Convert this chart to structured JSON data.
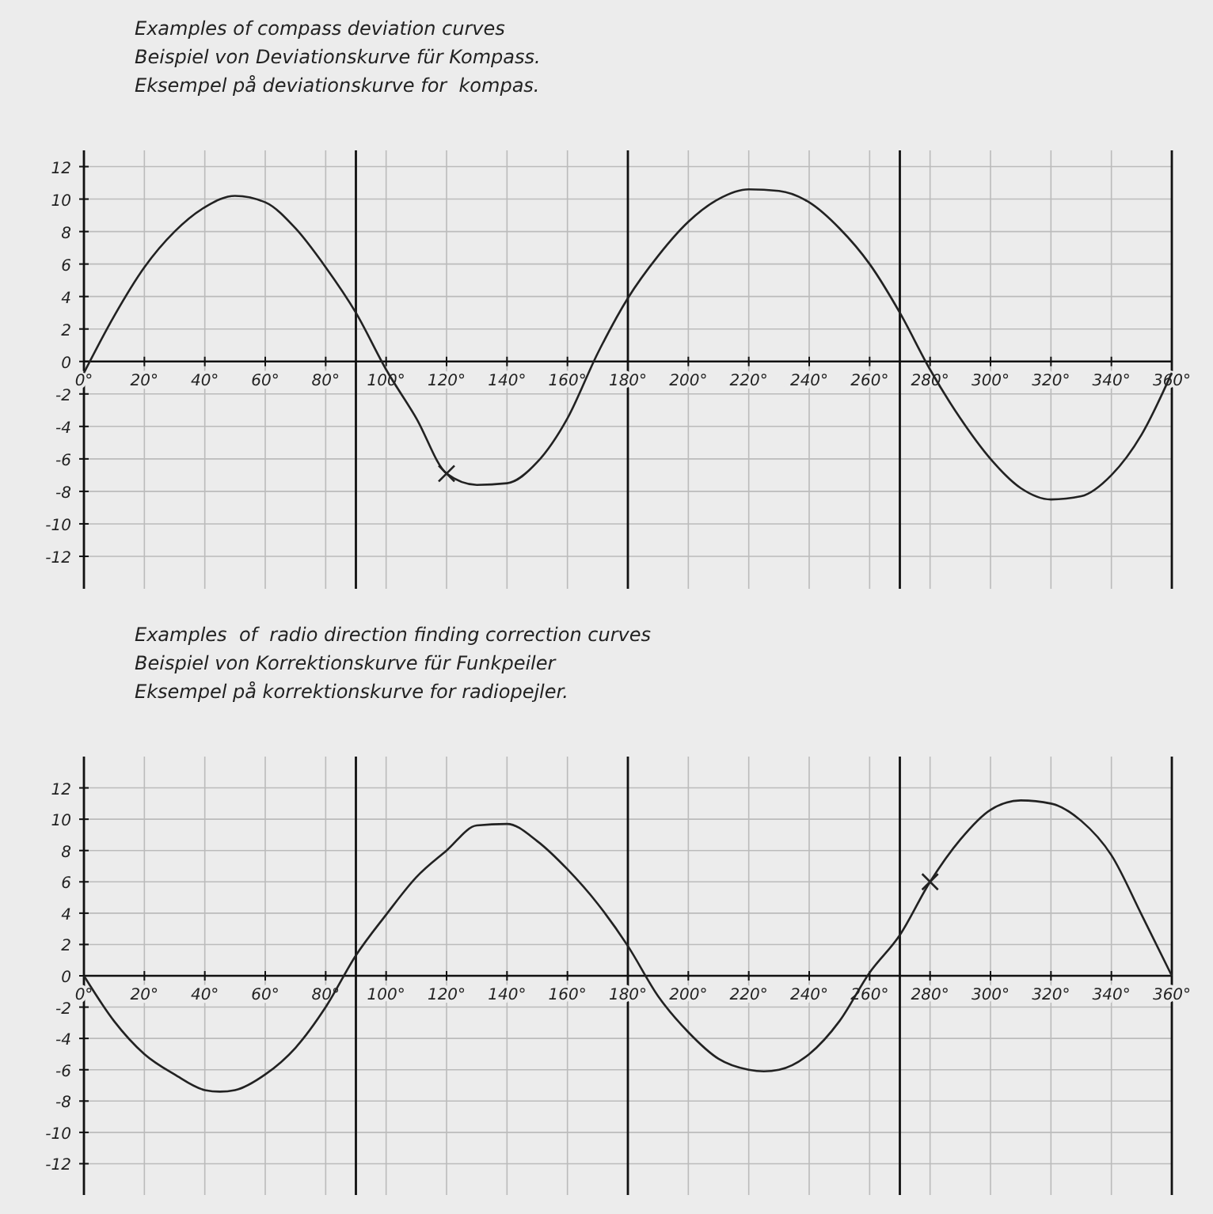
{
  "chart_data": [
    {
      "type": "line",
      "title": "Examples of compass deviation curves\nBeispiel von Deviationskurve für Kompass.\nEksempel på deviationskurve for  kompas.",
      "xlim": [
        0,
        360
      ],
      "ylim": [
        -14,
        13
      ],
      "xticks": [
        {
          "value": 0,
          "label": "0°"
        },
        {
          "value": 20,
          "label": "20°"
        },
        {
          "value": 40,
          "label": "40°"
        },
        {
          "value": 60,
          "label": "60°"
        },
        {
          "value": 80,
          "label": "80°"
        },
        {
          "value": 100,
          "label": "100°"
        },
        {
          "value": 120,
          "label": "120°"
        },
        {
          "value": 140,
          "label": "140°"
        },
        {
          "value": 160,
          "label": "160°"
        },
        {
          "value": 180,
          "label": "180°"
        },
        {
          "value": 200,
          "label": "200°"
        },
        {
          "value": 220,
          "label": "220°"
        },
        {
          "value": 240,
          "label": "240°"
        },
        {
          "value": 260,
          "label": "260°"
        },
        {
          "value": 280,
          "label": "280°"
        },
        {
          "value": 300,
          "label": "300°"
        },
        {
          "value": 320,
          "label": "320°"
        },
        {
          "value": 340,
          "label": "340°"
        },
        {
          "value": 360,
          "label": "360°"
        }
      ],
      "yticks": [
        -12,
        -10,
        -8,
        -6,
        -4,
        -2,
        0,
        2,
        4,
        6,
        8,
        10,
        12
      ],
      "grid": true,
      "ref_lines": [
        {
          "axis": "x",
          "value": 90,
          "color": "#111111"
        },
        {
          "axis": "x",
          "value": 180,
          "color": "#111111"
        },
        {
          "axis": "x",
          "value": 270,
          "color": "#111111"
        },
        {
          "axis": "x",
          "value": 360,
          "color": "#111111"
        }
      ],
      "series": [
        {
          "color": "#222222",
          "x": [
            0,
            10,
            20,
            30,
            40,
            50,
            60,
            70,
            80,
            90,
            100,
            110,
            120,
            130,
            140,
            150,
            160,
            170,
            180,
            190,
            200,
            210,
            220,
            230,
            240,
            250,
            260,
            270,
            280,
            290,
            300,
            310,
            320,
            330,
            340,
            350,
            360
          ],
          "values": [
            -0.7,
            2.8,
            5.8,
            8.0,
            9.5,
            10.2,
            9.8,
            8.2,
            5.8,
            3.0,
            -0.5,
            -3.5,
            -6.9,
            -7.6,
            -7.5,
            -6.2,
            -3.5,
            0.5,
            3.9,
            6.5,
            8.6,
            10.0,
            10.6,
            10.5,
            9.8,
            8.2,
            6.0,
            3.0,
            -0.5,
            -3.5,
            -6.0,
            -7.8,
            -8.5,
            -8.3,
            -7.0,
            -4.5,
            -0.7
          ]
        },
        {
          "type": "scatter",
          "marker": "cross",
          "color": "#222222",
          "x": [
            120
          ],
          "values": [
            -6.9
          ]
        }
      ]
    },
    {
      "type": "line",
      "title": "Examples  of  radio direction finding correction curves\nBeispiel von Korrektionskurve für Funkpeiler\nEksempel på korrektionskurve for radiopejler.",
      "xlim": [
        0,
        360
      ],
      "ylim": [
        -14,
        14
      ],
      "xticks": [
        {
          "value": 0,
          "label": "0°"
        },
        {
          "value": 20,
          "label": "20°"
        },
        {
          "value": 40,
          "label": "40°"
        },
        {
          "value": 60,
          "label": "60°"
        },
        {
          "value": 80,
          "label": "80°"
        },
        {
          "value": 100,
          "label": "100°"
        },
        {
          "value": 120,
          "label": "120°"
        },
        {
          "value": 140,
          "label": "140°"
        },
        {
          "value": 160,
          "label": "160°"
        },
        {
          "value": 180,
          "label": "180°"
        },
        {
          "value": 200,
          "label": "200°"
        },
        {
          "value": 220,
          "label": "220°"
        },
        {
          "value": 240,
          "label": "240°"
        },
        {
          "value": 260,
          "label": "260°"
        },
        {
          "value": 280,
          "label": "280°"
        },
        {
          "value": 300,
          "label": "300°"
        },
        {
          "value": 320,
          "label": "320°"
        },
        {
          "value": 340,
          "label": "340°"
        },
        {
          "value": 360,
          "label": "360°"
        }
      ],
      "yticks": [
        -12,
        -10,
        -8,
        -6,
        -4,
        -2,
        0,
        2,
        4,
        6,
        8,
        10,
        12
      ],
      "grid": true,
      "ref_lines": [
        {
          "axis": "x",
          "value": 90,
          "color": "#111111"
        },
        {
          "axis": "x",
          "value": 180,
          "color": "#111111"
        },
        {
          "axis": "x",
          "value": 270,
          "color": "#111111"
        },
        {
          "axis": "x",
          "value": 360,
          "color": "#111111"
        }
      ],
      "series": [
        {
          "color": "#222222",
          "x": [
            0,
            10,
            20,
            30,
            40,
            45,
            50,
            60,
            70,
            80,
            90,
            100,
            110,
            120,
            130,
            140,
            150,
            160,
            170,
            180,
            190,
            200,
            210,
            220,
            225,
            230,
            240,
            250,
            260,
            270,
            280,
            290,
            300,
            310,
            320,
            330,
            340,
            350,
            360
          ],
          "values": [
            0,
            -2.9,
            -5.0,
            -6.3,
            -7.3,
            -7.4,
            -7.3,
            -6.3,
            -4.6,
            -2.0,
            1.3,
            3.9,
            6.3,
            8.0,
            9.6,
            9.7,
            8.6,
            6.8,
            4.6,
            1.9,
            -1.3,
            -3.6,
            -5.3,
            -6.0,
            -6.1,
            -6.0,
            -5.0,
            -2.9,
            0.2,
            2.6,
            6.0,
            8.7,
            10.6,
            11.2,
            11.0,
            9.9,
            7.7,
            3.9,
            0
          ]
        },
        {
          "type": "scatter",
          "marker": "cross",
          "color": "#222222",
          "x": [
            280
          ],
          "values": [
            6.0
          ]
        }
      ]
    }
  ]
}
